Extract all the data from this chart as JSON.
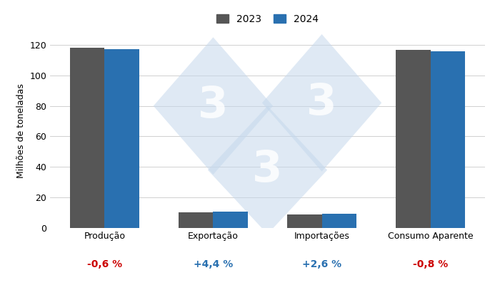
{
  "categories": [
    "Produção",
    "Exportação",
    "Importações",
    "Consumo Aparente"
  ],
  "values_2023": [
    118.0,
    10.2,
    9.0,
    116.8
  ],
  "values_2024": [
    117.3,
    10.65,
    9.23,
    115.9
  ],
  "color_2023": "#565656",
  "color_2024": "#2970B0",
  "ylabel": "Milhões de toneladas",
  "ylim": [
    0,
    127
  ],
  "yticks": [
    0,
    20,
    40,
    60,
    80,
    100,
    120
  ],
  "legend_labels": [
    "2023",
    "2024"
  ],
  "variations": [
    "-0,6 %",
    "+4,4 %",
    "+2,6 %",
    "-0,8 %"
  ],
  "var_colors": [
    "#cc0000",
    "#2970B0",
    "#2970B0",
    "#cc0000"
  ],
  "background_color": "#ffffff",
  "bar_width": 0.32,
  "label_fontsize": 9,
  "tick_fontsize": 9,
  "var_fontsize": 10,
  "watermark_color": "#c5d8ec",
  "watermark_alpha": 0.55
}
